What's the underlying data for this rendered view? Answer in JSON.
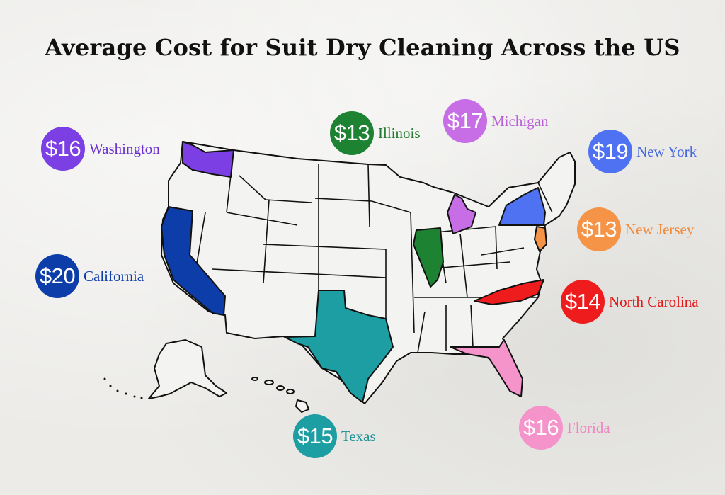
{
  "title": "Average Cost for Suit Dry Cleaning Across the US",
  "states": {
    "washington": {
      "price": "$16",
      "name": "Washington",
      "color": "#7b3fe4"
    },
    "illinois": {
      "price": "$13",
      "name": "Illinois",
      "color": "#1e8233"
    },
    "michigan": {
      "price": "$17",
      "name": "Michigan",
      "color": "#c76ee6"
    },
    "new_york": {
      "price": "$19",
      "name": "New York",
      "color": "#4f72f2"
    },
    "new_jersey": {
      "price": "$13",
      "name": "New Jersey",
      "color": "#f59346"
    },
    "california": {
      "price": "$20",
      "name": "California",
      "color": "#0c3da8"
    },
    "north_carolina": {
      "price": "$14",
      "name": "North Carolina",
      "color": "#ee1c1c"
    },
    "texas": {
      "price": "$15",
      "name": "Texas",
      "color": "#1d9ea2"
    },
    "florida": {
      "price": "$16",
      "name": "Florida",
      "color": "#f593cb"
    }
  }
}
